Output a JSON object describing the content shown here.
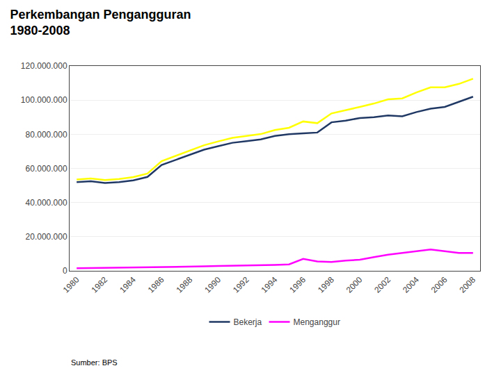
{
  "chart_data": {
    "type": "line",
    "title": "Perkembangan Pengangguran",
    "subtitle": "1980-2008",
    "source": "Sumber: BPS",
    "x": [
      1980,
      1981,
      1982,
      1983,
      1984,
      1985,
      1986,
      1987,
      1988,
      1989,
      1990,
      1991,
      1992,
      1993,
      1994,
      1995,
      1996,
      1997,
      1998,
      1999,
      2000,
      2001,
      2002,
      2003,
      2004,
      2005,
      2006,
      2007,
      2008
    ],
    "series": [
      {
        "color": "#FFFF00",
        "values": [
          53500000,
          54100000,
          53200000,
          53800000,
          54900000,
          57000000,
          64200000,
          67300000,
          70400000,
          73600000,
          75800000,
          77900000,
          79000000,
          80100000,
          82500000,
          83800000,
          87500000,
          86500000,
          92200000,
          94000000,
          96000000,
          98000000,
          100500000,
          101000000,
          104500000,
          107500000,
          107500000,
          109500000,
          112500000
        ]
      },
      {
        "name": "Bekerja",
        "color": "#1F3864",
        "values": [
          52000000,
          52500000,
          51500000,
          52000000,
          53000000,
          55000000,
          62000000,
          65000000,
          68000000,
          71000000,
          73000000,
          75000000,
          76000000,
          77000000,
          79000000,
          80000000,
          80500000,
          81000000,
          87000000,
          88000000,
          89500000,
          90000000,
          91000000,
          90500000,
          93000000,
          95000000,
          96000000,
          99000000,
          102000000
        ]
      },
      {
        "name": "Menganggur",
        "color": "#FF00FF",
        "values": [
          1500000,
          1600000,
          1700000,
          1800000,
          1900000,
          2000000,
          2200000,
          2300000,
          2400000,
          2600000,
          2800000,
          2900000,
          3000000,
          3100000,
          3500000,
          3800000,
          7000000,
          5500000,
          5200000,
          6000000,
          6500000,
          8000000,
          9500000,
          10500000,
          11500000,
          12500000,
          11500000,
          10500000,
          10500000
        ]
      }
    ],
    "xlim": [
      1979.5,
      2008.5
    ],
    "xticks": [
      1980,
      1982,
      1984,
      1986,
      1988,
      1990,
      1992,
      1994,
      1996,
      1998,
      2000,
      2002,
      2004,
      2006,
      2008
    ],
    "ylim": [
      0,
      120000000
    ],
    "yticks": [
      0,
      {
        "value": 20000000,
        "label": "20.000.000"
      },
      {
        "value": 40000000,
        "label": "40.000.000"
      },
      {
        "value": 60000000,
        "label": "60.000.000"
      },
      {
        "value": 80000000,
        "label": "80.000.000"
      },
      {
        "value": 100000000,
        "label": "100.000.000"
      },
      {
        "value": 120000000,
        "label": "120.000.000"
      }
    ],
    "grid": true,
    "legend": "bottom"
  }
}
